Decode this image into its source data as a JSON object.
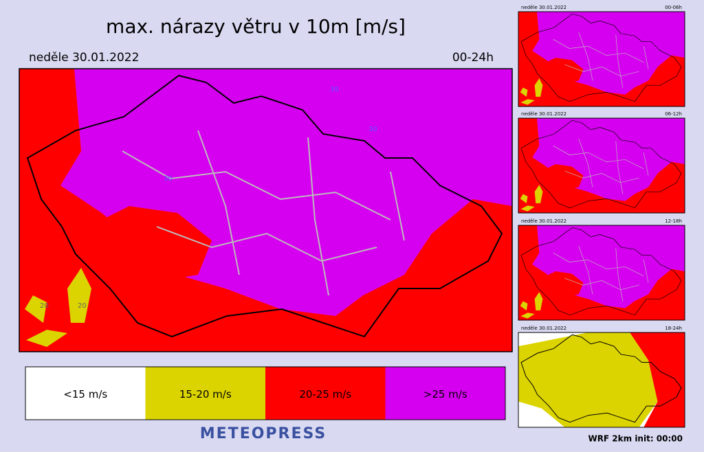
{
  "header": {
    "title": "max. nárazy větru v 10m [m/s]",
    "date": "neděle 30.01.2022",
    "period": "00-24h"
  },
  "map": {
    "contour_labels": [
      "30",
      "30",
      "30",
      "20",
      "20"
    ]
  },
  "legend": [
    {
      "label": "<15 m/s",
      "color": "#ffffff"
    },
    {
      "label": "15-20 m/s",
      "color": "#dcd400"
    },
    {
      "label": "20-25 m/s",
      "color": "#ff0000"
    },
    {
      "label": ">25 m/s",
      "color": "#d600f0"
    }
  ],
  "brand": "METEOPRESS",
  "panels": [
    {
      "date": "neděle 30.01.2022",
      "period": "00-06h"
    },
    {
      "date": "neděle 30.01.2022",
      "period": "06-12h"
    },
    {
      "date": "neděle 30.01.2022",
      "period": "12-18h"
    },
    {
      "date": "neděle 30.01.2022",
      "period": "18-24h"
    }
  ],
  "footer": "WRF 2km init: 00:00"
}
